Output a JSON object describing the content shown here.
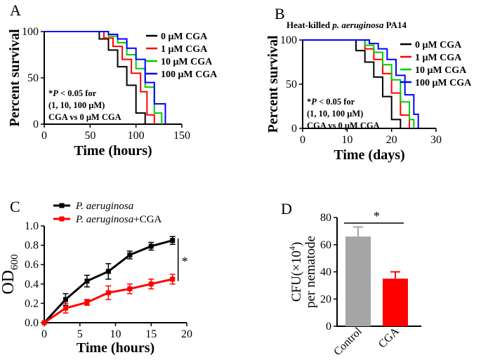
{
  "chart_data": [
    {
      "panel": "A",
      "type": "line",
      "title": "",
      "xlabel": "Time (hours)",
      "ylabel": "Percent survival",
      "xlim": [
        0,
        150
      ],
      "ylim": [
        0,
        100
      ],
      "xticks": [
        0,
        50,
        100,
        150
      ],
      "yticks": [
        0,
        50,
        100
      ],
      "legend_position": "top-right",
      "annotation": [
        "*P < 0.05 for",
        "(1, 10, 100 μM)",
        "CGA vs 0 μM CGA"
      ],
      "series": [
        {
          "name": "0 μM CGA",
          "color": "#000000",
          "x": [
            0,
            55,
            60,
            70,
            80,
            90,
            100,
            110
          ],
          "y": [
            100,
            100,
            92,
            80,
            62,
            42,
            12,
            0
          ]
        },
        {
          "name": "1 μM CGA",
          "color": "#ff0000",
          "x": [
            0,
            60,
            65,
            75,
            85,
            95,
            105,
            112,
            120
          ],
          "y": [
            100,
            100,
            93,
            84,
            70,
            55,
            35,
            10,
            0
          ]
        },
        {
          "name": "10 μM CGA",
          "color": "#00cc00",
          "x": [
            0,
            60,
            70,
            80,
            90,
            100,
            110,
            120,
            128
          ],
          "y": [
            100,
            100,
            95,
            88,
            75,
            60,
            40,
            12,
            0
          ]
        },
        {
          "name": "100 μM CGA",
          "color": "#0000ff",
          "x": [
            0,
            60,
            70,
            80,
            90,
            100,
            110,
            120,
            132
          ],
          "y": [
            100,
            100,
            97,
            92,
            82,
            70,
            45,
            22,
            0
          ]
        }
      ]
    },
    {
      "panel": "B",
      "type": "line",
      "title_prefix": "Heat-killed ",
      "title_italic": "p. aeruginosa",
      "title_suffix": " PA14",
      "xlabel": "Time (days)",
      "ylabel": "Percent survival",
      "xlim": [
        0,
        30
      ],
      "ylim": [
        0,
        100
      ],
      "xticks": [
        0,
        10,
        20,
        30
      ],
      "yticks": [
        0,
        50,
        100
      ],
      "legend_position": "top-right",
      "annotation": [
        "*P < 0.05 for",
        "(1, 10, 100 μM)",
        "CGA vs 0 μM CGA"
      ],
      "series": [
        {
          "name": "0 μM CGA",
          "color": "#000000",
          "x": [
            0,
            10,
            12,
            14,
            16,
            18,
            20,
            22
          ],
          "y": [
            100,
            100,
            88,
            75,
            58,
            36,
            10,
            0
          ]
        },
        {
          "name": "1 μM CGA",
          "color": "#ff0000",
          "x": [
            0,
            12,
            14,
            16,
            18,
            20,
            22,
            24
          ],
          "y": [
            100,
            100,
            90,
            78,
            62,
            40,
            15,
            0
          ]
        },
        {
          "name": "10 μM CGA",
          "color": "#00cc00",
          "x": [
            0,
            12,
            14,
            16,
            18,
            20,
            22,
            24,
            25
          ],
          "y": [
            100,
            100,
            94,
            86,
            72,
            55,
            30,
            10,
            0
          ]
        },
        {
          "name": "100 μM CGA",
          "color": "#0000ff",
          "x": [
            0,
            13,
            15,
            17,
            19,
            21,
            23,
            25,
            26
          ],
          "y": [
            100,
            100,
            96,
            90,
            78,
            60,
            38,
            16,
            0
          ]
        }
      ]
    },
    {
      "panel": "C",
      "type": "line",
      "xlabel": "Time (hours)",
      "ylabel_main": "OD",
      "ylabel_sub": "600",
      "xlim": [
        0,
        20
      ],
      "ylim": [
        0,
        1.0
      ],
      "xticks": [
        0,
        5,
        10,
        15,
        20
      ],
      "yticks": [
        0.0,
        0.2,
        0.4,
        0.6,
        0.8,
        1.0
      ],
      "ytick_labels": [
        "0.0",
        "0.2",
        "0.4",
        "0.6",
        "0.8",
        "1.0"
      ],
      "legend_position": "top-left",
      "significance": "*",
      "series": [
        {
          "name_italic": "P. aeruginosa",
          "name_suffix": "",
          "color": "#000000",
          "x": [
            0,
            3,
            6,
            9,
            12,
            15,
            18
          ],
          "y": [
            0.0,
            0.24,
            0.43,
            0.53,
            0.7,
            0.79,
            0.85
          ],
          "err": [
            0.0,
            0.06,
            0.06,
            0.08,
            0.04,
            0.04,
            0.04
          ]
        },
        {
          "name_italic": "P. aeruginosa",
          "name_suffix": "+CGA",
          "color": "#ff0000",
          "x": [
            0,
            3,
            6,
            9,
            12,
            15,
            18
          ],
          "y": [
            0.0,
            0.15,
            0.21,
            0.31,
            0.35,
            0.4,
            0.45
          ],
          "err": [
            0.0,
            0.05,
            0.03,
            0.07,
            0.05,
            0.05,
            0.05
          ]
        }
      ]
    },
    {
      "panel": "D",
      "type": "bar",
      "ylabel_line1": "CFU(×10",
      "ylabel_sup": "4",
      "ylabel_line1_end": ")",
      "ylabel_line2": "per nematode",
      "ylim": [
        0,
        80
      ],
      "yticks": [
        0,
        20,
        40,
        60,
        80
      ],
      "categories": [
        "Control",
        "CGA"
      ],
      "values": [
        66,
        35
      ],
      "errors": [
        7,
        5
      ],
      "colors": [
        "#a6a6a6",
        "#ff0000"
      ],
      "significance": "*"
    }
  ],
  "panel_letters": [
    "A",
    "B",
    "C",
    "D"
  ]
}
